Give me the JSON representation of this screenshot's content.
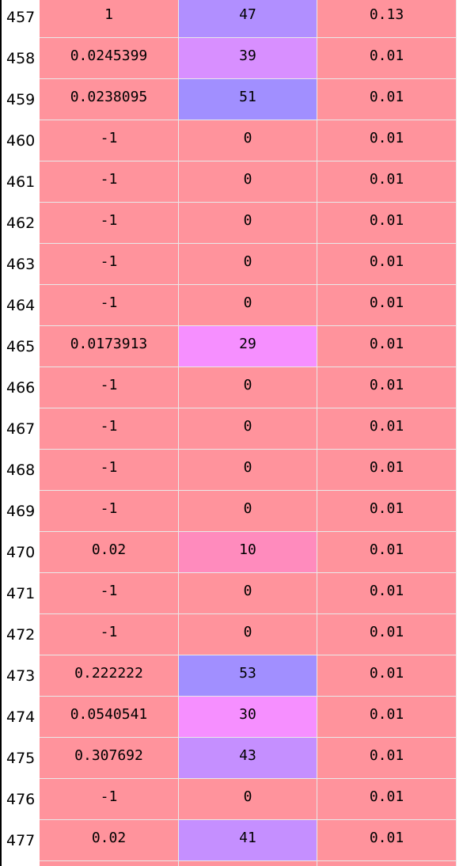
{
  "colors": {
    "base": "#ff939c",
    "pink": "#ff8bbd",
    "magenta": "#f68fff",
    "violet_light": "#d88fff",
    "violet": "#c58fff",
    "violet_mid": "#b18fff",
    "blue_violet": "#a18fff"
  },
  "rows": [
    {
      "num": "457",
      "a": "1",
      "b": "47",
      "c": "0.13",
      "b_color": "violet_mid"
    },
    {
      "num": "458",
      "a": "0.0245399",
      "b": "39",
      "c": "0.01",
      "b_color": "violet_light"
    },
    {
      "num": "459",
      "a": "0.0238095",
      "b": "51",
      "c": "0.01",
      "b_color": "blue_violet"
    },
    {
      "num": "460",
      "a": "-1",
      "b": "0",
      "c": "0.01",
      "b_color": "base"
    },
    {
      "num": "461",
      "a": "-1",
      "b": "0",
      "c": "0.01",
      "b_color": "base"
    },
    {
      "num": "462",
      "a": "-1",
      "b": "0",
      "c": "0.01",
      "b_color": "base"
    },
    {
      "num": "463",
      "a": "-1",
      "b": "0",
      "c": "0.01",
      "b_color": "base"
    },
    {
      "num": "464",
      "a": "-1",
      "b": "0",
      "c": "0.01",
      "b_color": "base"
    },
    {
      "num": "465",
      "a": "0.0173913",
      "b": "29",
      "c": "0.01",
      "b_color": "magenta"
    },
    {
      "num": "466",
      "a": "-1",
      "b": "0",
      "c": "0.01",
      "b_color": "base"
    },
    {
      "num": "467",
      "a": "-1",
      "b": "0",
      "c": "0.01",
      "b_color": "base"
    },
    {
      "num": "468",
      "a": "-1",
      "b": "0",
      "c": "0.01",
      "b_color": "base"
    },
    {
      "num": "469",
      "a": "-1",
      "b": "0",
      "c": "0.01",
      "b_color": "base"
    },
    {
      "num": "470",
      "a": "0.02",
      "b": "10",
      "c": "0.01",
      "b_color": "pink"
    },
    {
      "num": "471",
      "a": "-1",
      "b": "0",
      "c": "0.01",
      "b_color": "base"
    },
    {
      "num": "472",
      "a": "-1",
      "b": "0",
      "c": "0.01",
      "b_color": "base"
    },
    {
      "num": "473",
      "a": "0.222222",
      "b": "53",
      "c": "0.01",
      "b_color": "blue_violet"
    },
    {
      "num": "474",
      "a": "0.0540541",
      "b": "30",
      "c": "0.01",
      "b_color": "magenta"
    },
    {
      "num": "475",
      "a": "0.307692",
      "b": "43",
      "c": "0.01",
      "b_color": "violet"
    },
    {
      "num": "476",
      "a": "-1",
      "b": "0",
      "c": "0.01",
      "b_color": "base"
    },
    {
      "num": "477",
      "a": "0.02",
      "b": "41",
      "c": "0.01",
      "b_color": "violet"
    }
  ]
}
